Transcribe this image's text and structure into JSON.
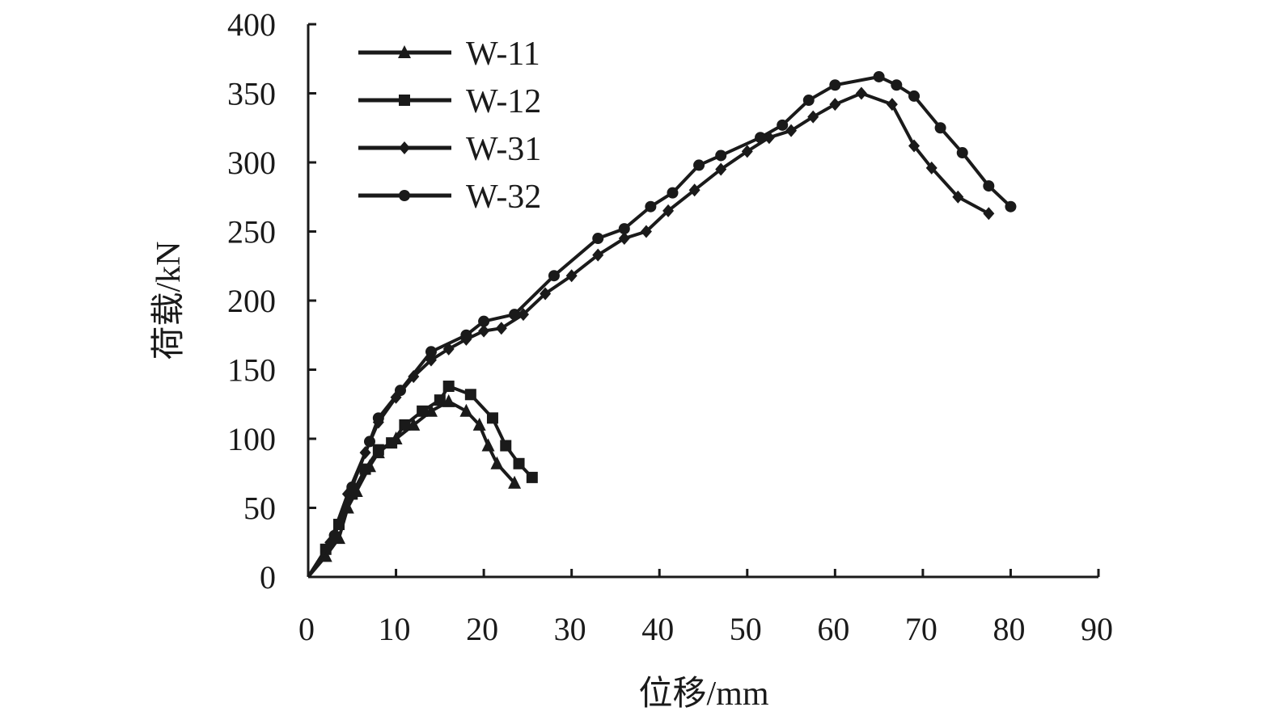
{
  "chart_data": {
    "type": "line",
    "title": "",
    "xlabel": "位移/mm",
    "ylabel": "荷载/kN",
    "xlim": [
      0,
      90
    ],
    "ylim": [
      0,
      400
    ],
    "xticks": [
      0,
      10,
      20,
      30,
      40,
      50,
      60,
      70,
      80,
      90
    ],
    "yticks": [
      0,
      50,
      100,
      150,
      200,
      250,
      300,
      350,
      400
    ],
    "grid": false,
    "legend_position": "top-left",
    "line_color": "#1a1a1a",
    "series": [
      {
        "name": "W-11",
        "marker": "triangle",
        "x": [
          0,
          2,
          3.5,
          4.5,
          5.5,
          7,
          8,
          10,
          12,
          14,
          16,
          18,
          19.5,
          20.5,
          21.5,
          23.5
        ],
        "y": [
          0,
          15,
          28,
          50,
          62,
          80,
          90,
          100,
          110,
          120,
          127,
          120,
          110,
          95,
          82,
          68
        ]
      },
      {
        "name": "W-12",
        "marker": "square",
        "x": [
          0,
          2,
          3.5,
          5,
          6.5,
          8,
          9.5,
          11,
          13,
          15,
          16,
          18.5,
          21,
          22.5,
          24,
          25.5
        ],
        "y": [
          0,
          20,
          38,
          60,
          78,
          92,
          97,
          110,
          120,
          128,
          138,
          132,
          115,
          95,
          82,
          72
        ]
      },
      {
        "name": "W-31",
        "marker": "diamond",
        "x": [
          0,
          2.5,
          4.5,
          6.5,
          8,
          10,
          12,
          14,
          16,
          18,
          20,
          22,
          24.5,
          27,
          30,
          33,
          36,
          38.5,
          41,
          44,
          47,
          50,
          52.5,
          55,
          57.5,
          60,
          63,
          66.5,
          69,
          71,
          74,
          77.5
        ],
        "y": [
          0,
          25,
          60,
          90,
          112,
          130,
          145,
          157,
          165,
          172,
          178,
          180,
          190,
          205,
          218,
          233,
          245,
          250,
          265,
          280,
          295,
          308,
          318,
          323,
          333,
          342,
          350,
          342,
          312,
          296,
          275,
          263
        ]
      },
      {
        "name": "W-32",
        "marker": "circle",
        "x": [
          0,
          3,
          5,
          7,
          8,
          10.5,
          14,
          18,
          20,
          23.5,
          28,
          33,
          36,
          39,
          41.5,
          44.5,
          47,
          51.5,
          54,
          57,
          60,
          65,
          67,
          69,
          72,
          74.5,
          77.5,
          80
        ],
        "y": [
          0,
          30,
          65,
          98,
          115,
          135,
          163,
          175,
          185,
          190,
          218,
          245,
          252,
          268,
          278,
          298,
          305,
          318,
          327,
          345,
          356,
          362,
          356,
          348,
          325,
          307,
          283,
          268
        ]
      }
    ]
  }
}
